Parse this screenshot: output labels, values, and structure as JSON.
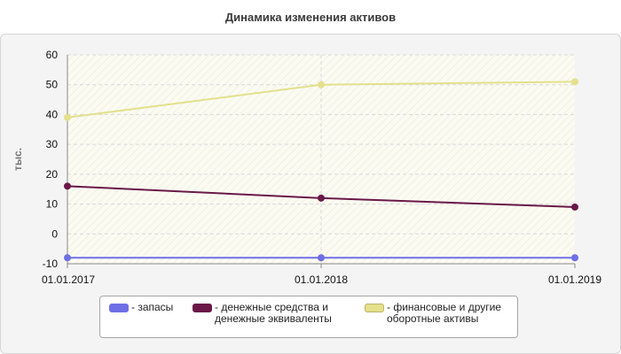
{
  "chart_data": {
    "type": "line",
    "title": "Динамика изменения активов",
    "ylabel": "тыс.",
    "xlabel": "",
    "categories": [
      "01.01.2017",
      "01.01.2018",
      "01.01.2019"
    ],
    "yticks": [
      "60",
      "50",
      "40",
      "30",
      "20",
      "10",
      "0",
      "-10"
    ],
    "ylim": [
      -10,
      60
    ],
    "grid": true,
    "legend_placement": "bottom",
    "series": [
      {
        "name": "- запасы",
        "values": [
          -8,
          -8,
          -8
        ],
        "color": "#6f6fe6"
      },
      {
        "name": "- денежные средства и\nденежные эквиваленты",
        "values": [
          16,
          12,
          9
        ],
        "color": "#6a1848"
      },
      {
        "name": "- финансовые и другие\nоборотные активы",
        "values": [
          39,
          50,
          51
        ],
        "color": "#e4e08c"
      }
    ]
  }
}
